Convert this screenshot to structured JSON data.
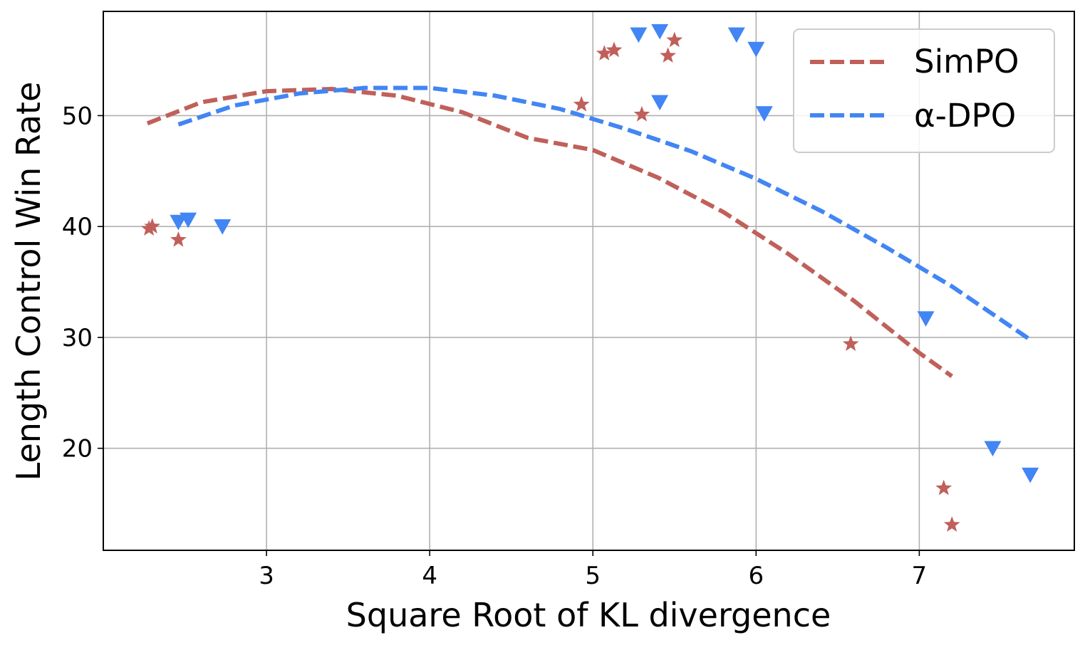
{
  "chart_data": {
    "type": "scatter",
    "title": "",
    "xlabel": "Square Root of KL divergence",
    "ylabel": "Length Control Win Rate",
    "xlim": [
      2.0,
      7.95
    ],
    "ylim": [
      10.8,
      59.4
    ],
    "xticks": [
      3,
      4,
      5,
      6,
      7
    ],
    "yticks": [
      20,
      30,
      40,
      50
    ],
    "grid": true,
    "legend_position": "top-right",
    "series": [
      {
        "name": "SimPO",
        "legend_label": "SimPO",
        "color": "#c0605a",
        "marker": "star",
        "points": [
          {
            "x": 2.28,
            "y": 39.8
          },
          {
            "x": 2.3,
            "y": 40.0
          },
          {
            "x": 2.46,
            "y": 38.8
          },
          {
            "x": 4.93,
            "y": 51.0
          },
          {
            "x": 5.07,
            "y": 55.6
          },
          {
            "x": 5.13,
            "y": 55.9
          },
          {
            "x": 5.3,
            "y": 50.1
          },
          {
            "x": 5.46,
            "y": 55.4
          },
          {
            "x": 5.5,
            "y": 56.8
          },
          {
            "x": 6.58,
            "y": 29.4
          },
          {
            "x": 7.15,
            "y": 16.4
          },
          {
            "x": 7.2,
            "y": 13.1
          }
        ],
        "fit_line": {
          "style": "dashed",
          "x": [
            2.27,
            2.6,
            3.0,
            3.4,
            3.8,
            4.2,
            4.6,
            5.0,
            5.4,
            5.8,
            6.2,
            6.6,
            7.0,
            7.2
          ],
          "y": [
            49.3,
            51.2,
            52.2,
            52.4,
            51.8,
            50.3,
            48.0,
            46.9,
            44.4,
            41.3,
            37.5,
            33.3,
            28.6,
            26.5
          ]
        }
      },
      {
        "name": "alpha-DPO",
        "legend_label": "α-DPO",
        "color": "#4285f4",
        "marker": "triangle-down",
        "points": [
          {
            "x": 2.46,
            "y": 40.4
          },
          {
            "x": 2.52,
            "y": 40.6
          },
          {
            "x": 2.73,
            "y": 40.0
          },
          {
            "x": 5.28,
            "y": 57.3
          },
          {
            "x": 5.41,
            "y": 57.6
          },
          {
            "x": 5.41,
            "y": 51.2
          },
          {
            "x": 5.88,
            "y": 57.3
          },
          {
            "x": 6.0,
            "y": 56.0
          },
          {
            "x": 6.05,
            "y": 50.2
          },
          {
            "x": 7.04,
            "y": 31.7
          },
          {
            "x": 7.45,
            "y": 20.0
          },
          {
            "x": 7.68,
            "y": 17.6
          }
        ],
        "fit_line": {
          "style": "dashed",
          "x": [
            2.46,
            2.8,
            3.2,
            3.6,
            4.0,
            4.4,
            4.8,
            5.2,
            5.6,
            6.0,
            6.4,
            6.8,
            7.2,
            7.68
          ],
          "y": [
            49.2,
            50.9,
            52.0,
            52.5,
            52.5,
            51.8,
            50.6,
            48.8,
            46.8,
            44.3,
            41.4,
            38.1,
            34.6,
            29.8
          ]
        }
      }
    ]
  }
}
